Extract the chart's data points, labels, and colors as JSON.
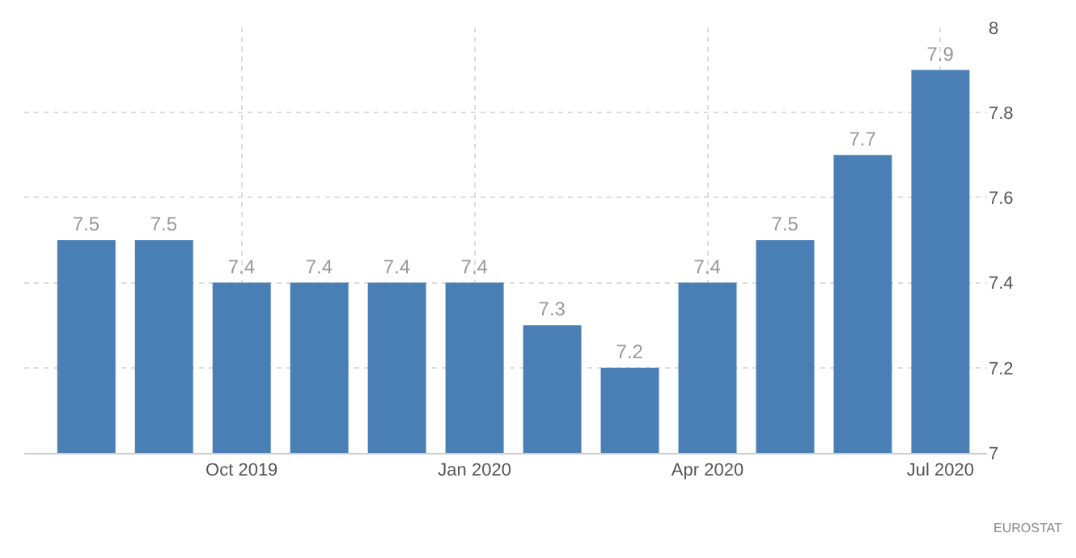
{
  "chart_data": {
    "type": "bar",
    "categories": [
      null,
      null,
      "Oct 2019",
      null,
      null,
      "Jan 2020",
      null,
      null,
      "Apr 2020",
      null,
      null,
      "Jul 2020"
    ],
    "values": [
      7.5,
      7.5,
      7.4,
      7.4,
      7.4,
      7.4,
      7.3,
      7.2,
      7.4,
      7.5,
      7.7,
      7.9
    ],
    "color": "#4a7fb5",
    "ylim": [
      7,
      8
    ],
    "yticks": [
      7,
      7.2,
      7.4,
      7.6,
      7.8,
      8
    ],
    "grid": true,
    "data_labels": true,
    "legend": false,
    "annotations": [
      "EUROSTAT"
    ]
  }
}
